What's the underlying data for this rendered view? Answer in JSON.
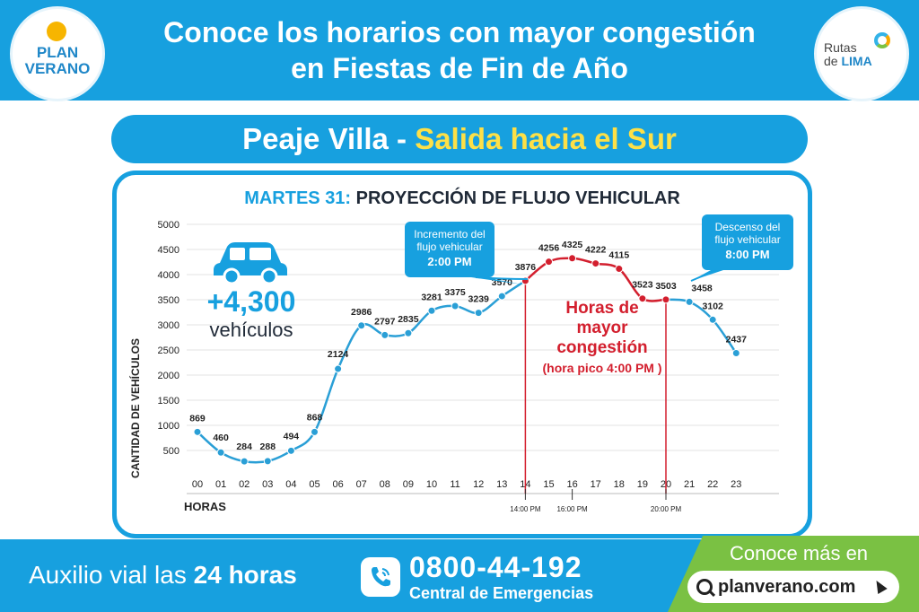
{
  "header": {
    "title_line1": "Conoce los horarios con mayor congestión",
    "title_line2": "en Fiestas de Fin de Año",
    "logo_left_line1": "PLAN",
    "logo_left_line2": "VERANO",
    "logo_right_line1": "Rutas",
    "logo_right_line2_a": "de ",
    "logo_right_line2_b": "LIMA"
  },
  "subtitle": {
    "part1": "Peaje Villa - ",
    "part2": "Salida hacia el Sur"
  },
  "chart_data": {
    "type": "line",
    "title_prefix": "MARTES 31:",
    "title_rest": " PROYECCIÓN DE FLUJO VEHICULAR",
    "xlabel": "HORAS",
    "ylabel": "CANTIDAD DE VEHÍCULOS",
    "ylim": [
      0,
      5000
    ],
    "y_ticks": [
      500,
      1000,
      1500,
      2000,
      2500,
      3000,
      3500,
      4000,
      4500,
      5000
    ],
    "categories": [
      "00",
      "01",
      "02",
      "03",
      "04",
      "05",
      "06",
      "07",
      "08",
      "09",
      "10",
      "11",
      "12",
      "13",
      "14",
      "15",
      "16",
      "17",
      "18",
      "19",
      "20",
      "21",
      "22",
      "23"
    ],
    "values": [
      869,
      460,
      284,
      288,
      494,
      868,
      2124,
      2986,
      2797,
      2835,
      3281,
      3375,
      3239,
      3570,
      3876,
      4256,
      4325,
      4222,
      4115,
      3523,
      3503,
      3458,
      3102,
      2437
    ],
    "peak_range": [
      14,
      20
    ],
    "time_markers": [
      {
        "hour": 14,
        "label": "14:00 PM"
      },
      {
        "hour": 16,
        "label": "16:00 PM"
      },
      {
        "hour": 20,
        "label": "20:00 PM"
      }
    ],
    "callout_left": {
      "line1": "Incremento del",
      "line2": "flujo vehicular",
      "line3": "2:00 PM"
    },
    "callout_right": {
      "line1": "Descenso del",
      "line2": "flujo vehicular",
      "line3": "8:00 PM"
    },
    "peak_label": {
      "line1": "Horas de",
      "line2": "mayor",
      "line3": "congestión",
      "line4": "(hora pico 4:00 PM )"
    },
    "total": {
      "value": "+4,300",
      "unit": "vehículos"
    },
    "grid": true,
    "colors": {
      "normal": "#2a9fd6",
      "peak": "#d31f2e",
      "accent": "#17a0df"
    }
  },
  "footer": {
    "assist_prefix": "Auxilio vial las ",
    "assist_bold": "24 horas",
    "phone": "0800-44-192",
    "phone_sub": "Central de Emergencias",
    "more_title": "Conoce más en",
    "website": "planverano.com"
  },
  "icons": [
    "car-icon",
    "phone-icon",
    "search-icon",
    "cursor-icon",
    "sun-icon"
  ]
}
